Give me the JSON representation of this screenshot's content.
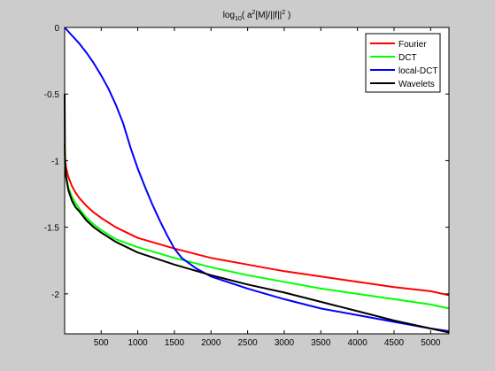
{
  "chart_data": {
    "type": "line",
    "title": {
      "base": "log",
      "sub": "10",
      "main": "( a",
      "sup1": "2",
      "mid": "[M]/||f||",
      "sup2": "2",
      "end": " )"
    },
    "xlabel": "",
    "ylabel": "",
    "xlim": [
      1,
      5250
    ],
    "ylim": [
      -2.3,
      0
    ],
    "x_ticks": [
      500,
      1000,
      1500,
      2000,
      2500,
      3000,
      3500,
      4000,
      4500,
      5000
    ],
    "y_ticks": [
      0,
      -0.5,
      -1,
      -1.5,
      -2
    ],
    "y_tick_labels": [
      "0",
      "-0.5",
      "-1",
      "-1.5",
      "-2"
    ],
    "legend_position": "top-right",
    "grid": false,
    "series": [
      {
        "name": "Fourier",
        "color": "#ff0000",
        "points": [
          [
            1,
            -0.87
          ],
          [
            5,
            -0.95
          ],
          [
            10,
            -1.0
          ],
          [
            20,
            -1.05
          ],
          [
            50,
            -1.12
          ],
          [
            100,
            -1.19
          ],
          [
            150,
            -1.24
          ],
          [
            200,
            -1.28
          ],
          [
            300,
            -1.34
          ],
          [
            400,
            -1.39
          ],
          [
            500,
            -1.43
          ],
          [
            700,
            -1.5
          ],
          [
            1000,
            -1.58
          ],
          [
            1500,
            -1.66
          ],
          [
            2000,
            -1.73
          ],
          [
            2500,
            -1.78
          ],
          [
            3000,
            -1.83
          ],
          [
            3500,
            -1.87
          ],
          [
            4000,
            -1.91
          ],
          [
            4500,
            -1.95
          ],
          [
            5000,
            -1.98
          ],
          [
            5250,
            -2.01
          ]
        ]
      },
      {
        "name": "DCT",
        "color": "#00ff00",
        "points": [
          [
            1,
            -0.9
          ],
          [
            5,
            -1.0
          ],
          [
            10,
            -1.06
          ],
          [
            20,
            -1.11
          ],
          [
            50,
            -1.2
          ],
          [
            100,
            -1.27
          ],
          [
            150,
            -1.32
          ],
          [
            200,
            -1.36
          ],
          [
            300,
            -1.43
          ],
          [
            400,
            -1.48
          ],
          [
            500,
            -1.52
          ],
          [
            700,
            -1.59
          ],
          [
            1000,
            -1.65
          ],
          [
            1500,
            -1.73
          ],
          [
            2000,
            -1.8
          ],
          [
            2500,
            -1.86
          ],
          [
            3000,
            -1.91
          ],
          [
            3500,
            -1.96
          ],
          [
            4000,
            -2.0
          ],
          [
            4500,
            -2.04
          ],
          [
            5000,
            -2.08
          ],
          [
            5250,
            -2.11
          ]
        ]
      },
      {
        "name": "local-DCT",
        "color": "#0000ff",
        "points": [
          [
            1,
            -0.0
          ],
          [
            50,
            -0.03
          ],
          [
            100,
            -0.06
          ],
          [
            200,
            -0.12
          ],
          [
            300,
            -0.19
          ],
          [
            400,
            -0.27
          ],
          [
            500,
            -0.36
          ],
          [
            600,
            -0.46
          ],
          [
            700,
            -0.58
          ],
          [
            800,
            -0.72
          ],
          [
            900,
            -0.9
          ],
          [
            1000,
            -1.06
          ],
          [
            1100,
            -1.2
          ],
          [
            1200,
            -1.33
          ],
          [
            1300,
            -1.45
          ],
          [
            1400,
            -1.56
          ],
          [
            1500,
            -1.66
          ],
          [
            1600,
            -1.73
          ],
          [
            1800,
            -1.81
          ],
          [
            2000,
            -1.87
          ],
          [
            2500,
            -1.96
          ],
          [
            3000,
            -2.04
          ],
          [
            3500,
            -2.11
          ],
          [
            4000,
            -2.16
          ],
          [
            4500,
            -2.21
          ],
          [
            5000,
            -2.26
          ],
          [
            5250,
            -2.28
          ]
        ]
      },
      {
        "name": "Wavelets",
        "color": "#000000",
        "points": [
          [
            1,
            -0.5
          ],
          [
            3,
            -0.8
          ],
          [
            5,
            -0.95
          ],
          [
            10,
            -1.05
          ],
          [
            20,
            -1.12
          ],
          [
            50,
            -1.22
          ],
          [
            100,
            -1.3
          ],
          [
            150,
            -1.35
          ],
          [
            200,
            -1.38
          ],
          [
            300,
            -1.45
          ],
          [
            400,
            -1.5
          ],
          [
            500,
            -1.54
          ],
          [
            700,
            -1.61
          ],
          [
            1000,
            -1.69
          ],
          [
            1500,
            -1.78
          ],
          [
            2000,
            -1.86
          ],
          [
            2500,
            -1.93
          ],
          [
            3000,
            -1.99
          ],
          [
            3500,
            -2.06
          ],
          [
            4000,
            -2.13
          ],
          [
            4500,
            -2.2
          ],
          [
            5000,
            -2.26
          ],
          [
            5250,
            -2.29
          ]
        ]
      }
    ]
  }
}
